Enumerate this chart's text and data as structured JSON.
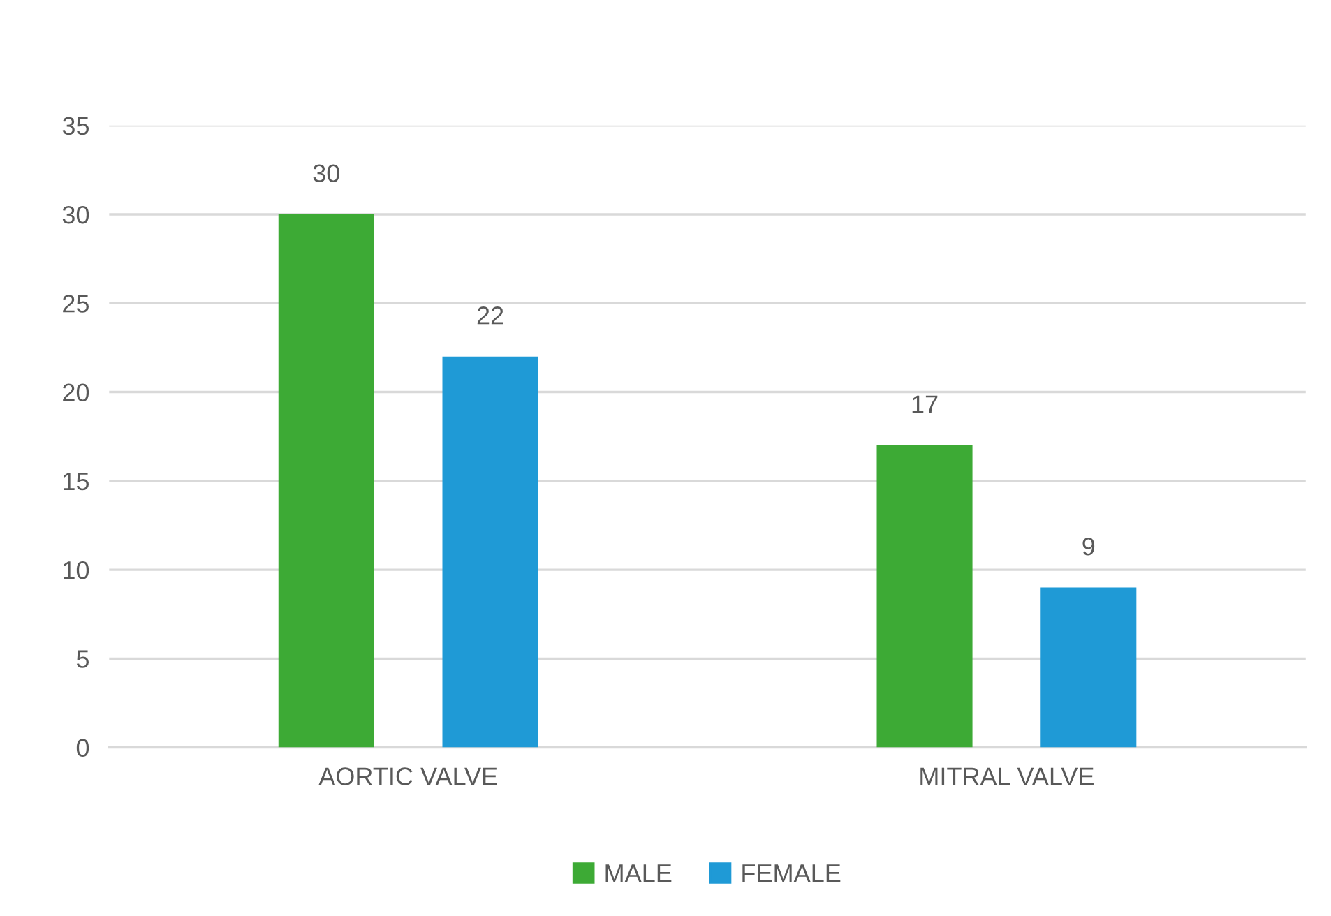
{
  "chart_data": {
    "type": "bar",
    "categories": [
      "AORTIC VALVE",
      "MITRAL VALVE"
    ],
    "series": [
      {
        "name": "MALE",
        "color": "#3daa35",
        "values": [
          30,
          17
        ]
      },
      {
        "name": "FEMALE",
        "color": "#1f9ad6",
        "values": [
          22,
          9
        ]
      }
    ],
    "ylim": [
      0,
      35
    ],
    "yticks": [
      0,
      5,
      10,
      15,
      20,
      25,
      30,
      35
    ],
    "grid": "y",
    "legend": "bottom",
    "data_labels": true
  }
}
